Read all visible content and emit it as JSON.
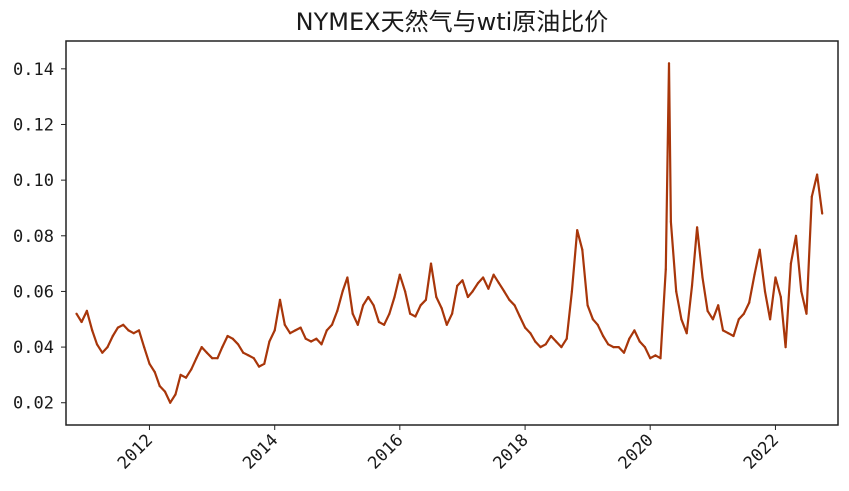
{
  "chart_data": {
    "type": "line",
    "title": "NYMEX天然气与wti原油比价",
    "xlabel": "",
    "ylabel": "",
    "x_range": [
      "2010-09-01",
      "2023-01-01"
    ],
    "ylim": [
      0.012,
      0.15
    ],
    "grid": false,
    "legend": "none",
    "line_color": "#a8360a",
    "y_ticks": [
      "0.02",
      "0.04",
      "0.06",
      "0.08",
      "0.10",
      "0.12",
      "0.14"
    ],
    "x_ticks": [
      "2012",
      "2014",
      "2016",
      "2018",
      "2020",
      "2022"
    ],
    "series": [
      {
        "x": [
          "2010-11-01",
          "2010-12-01",
          "2011-01-01",
          "2011-02-01",
          "2011-03-01",
          "2011-04-01",
          "2011-05-01",
          "2011-06-01",
          "2011-07-01",
          "2011-08-01",
          "2011-09-01",
          "2011-10-01",
          "2011-11-01",
          "2011-12-01",
          "2012-01-01",
          "2012-02-01",
          "2012-03-01",
          "2012-04-01",
          "2012-05-01",
          "2012-06-01",
          "2012-07-01",
          "2012-08-01",
          "2012-09-01",
          "2012-10-01",
          "2012-11-01",
          "2012-12-01",
          "2013-01-01",
          "2013-02-01",
          "2013-03-01",
          "2013-04-01",
          "2013-05-01",
          "2013-06-01",
          "2013-07-01",
          "2013-08-01",
          "2013-09-01",
          "2013-10-01",
          "2013-11-01",
          "2013-12-01",
          "2014-01-01",
          "2014-02-01",
          "2014-03-01",
          "2014-04-01",
          "2014-05-01",
          "2014-06-01",
          "2014-07-01",
          "2014-08-01",
          "2014-09-01",
          "2014-10-01",
          "2014-11-01",
          "2014-12-01",
          "2015-01-01",
          "2015-02-01",
          "2015-03-01",
          "2015-04-01",
          "2015-05-01",
          "2015-06-01",
          "2015-07-01",
          "2015-08-01",
          "2015-09-01",
          "2015-10-01",
          "2015-11-01",
          "2015-12-01",
          "2016-01-01",
          "2016-02-01",
          "2016-03-01",
          "2016-04-01",
          "2016-05-01",
          "2016-06-01",
          "2016-07-01",
          "2016-08-01",
          "2016-09-01",
          "2016-10-01",
          "2016-11-01",
          "2016-12-01",
          "2017-01-01",
          "2017-02-01",
          "2017-03-01",
          "2017-04-01",
          "2017-05-01",
          "2017-06-01",
          "2017-07-01",
          "2017-08-01",
          "2017-09-01",
          "2017-10-01",
          "2017-11-01",
          "2017-12-01",
          "2018-01-01",
          "2018-02-01",
          "2018-03-01",
          "2018-04-01",
          "2018-05-01",
          "2018-06-01",
          "2018-07-01",
          "2018-08-01",
          "2018-09-01",
          "2018-10-01",
          "2018-11-01",
          "2018-12-01",
          "2019-01-01",
          "2019-02-01",
          "2019-03-01",
          "2019-04-01",
          "2019-05-01",
          "2019-06-01",
          "2019-07-01",
          "2019-08-01",
          "2019-09-01",
          "2019-10-01",
          "2019-11-01",
          "2019-12-01",
          "2020-01-01",
          "2020-02-01",
          "2020-03-01",
          "2020-04-01",
          "2020-04-20",
          "2020-05-01",
          "2020-06-01",
          "2020-07-01",
          "2020-08-01",
          "2020-09-01",
          "2020-10-01",
          "2020-11-01",
          "2020-12-01",
          "2021-01-01",
          "2021-02-01",
          "2021-03-01",
          "2021-04-01",
          "2021-05-01",
          "2021-06-01",
          "2021-07-01",
          "2021-08-01",
          "2021-09-01",
          "2021-10-01",
          "2021-11-01",
          "2021-12-01",
          "2022-01-01",
          "2022-02-01",
          "2022-03-01",
          "2022-04-01",
          "2022-05-01",
          "2022-06-01",
          "2022-07-01",
          "2022-08-01",
          "2022-09-01",
          "2022-10-01"
        ],
        "y": [
          0.052,
          0.049,
          0.053,
          0.046,
          0.041,
          0.038,
          0.04,
          0.044,
          0.047,
          0.048,
          0.046,
          0.045,
          0.046,
          0.04,
          0.034,
          0.031,
          0.026,
          0.024,
          0.02,
          0.023,
          0.03,
          0.029,
          0.032,
          0.036,
          0.04,
          0.038,
          0.036,
          0.036,
          0.04,
          0.044,
          0.043,
          0.041,
          0.038,
          0.037,
          0.036,
          0.033,
          0.034,
          0.042,
          0.046,
          0.057,
          0.048,
          0.045,
          0.046,
          0.047,
          0.043,
          0.042,
          0.043,
          0.041,
          0.046,
          0.048,
          0.053,
          0.06,
          0.065,
          0.052,
          0.048,
          0.055,
          0.058,
          0.055,
          0.049,
          0.048,
          0.052,
          0.058,
          0.066,
          0.06,
          0.052,
          0.051,
          0.055,
          0.057,
          0.07,
          0.058,
          0.054,
          0.048,
          0.052,
          0.062,
          0.064,
          0.058,
          0.06,
          0.063,
          0.065,
          0.061,
          0.066,
          0.063,
          0.06,
          0.057,
          0.055,
          0.051,
          0.047,
          0.045,
          0.042,
          0.04,
          0.041,
          0.044,
          0.042,
          0.04,
          0.043,
          0.06,
          0.082,
          0.075,
          0.055,
          0.05,
          0.048,
          0.044,
          0.041,
          0.04,
          0.04,
          0.038,
          0.043,
          0.046,
          0.042,
          0.04,
          0.036,
          0.037,
          0.036,
          0.068,
          0.142,
          0.085,
          0.06,
          0.05,
          0.045,
          0.062,
          0.083,
          0.065,
          0.053,
          0.05,
          0.055,
          0.046,
          0.045,
          0.044,
          0.05,
          0.052,
          0.056,
          0.066,
          0.075,
          0.06,
          0.05,
          0.065,
          0.058,
          0.04,
          0.07,
          0.08,
          0.06,
          0.052,
          0.094,
          0.102,
          0.088
        ]
      }
    ]
  }
}
